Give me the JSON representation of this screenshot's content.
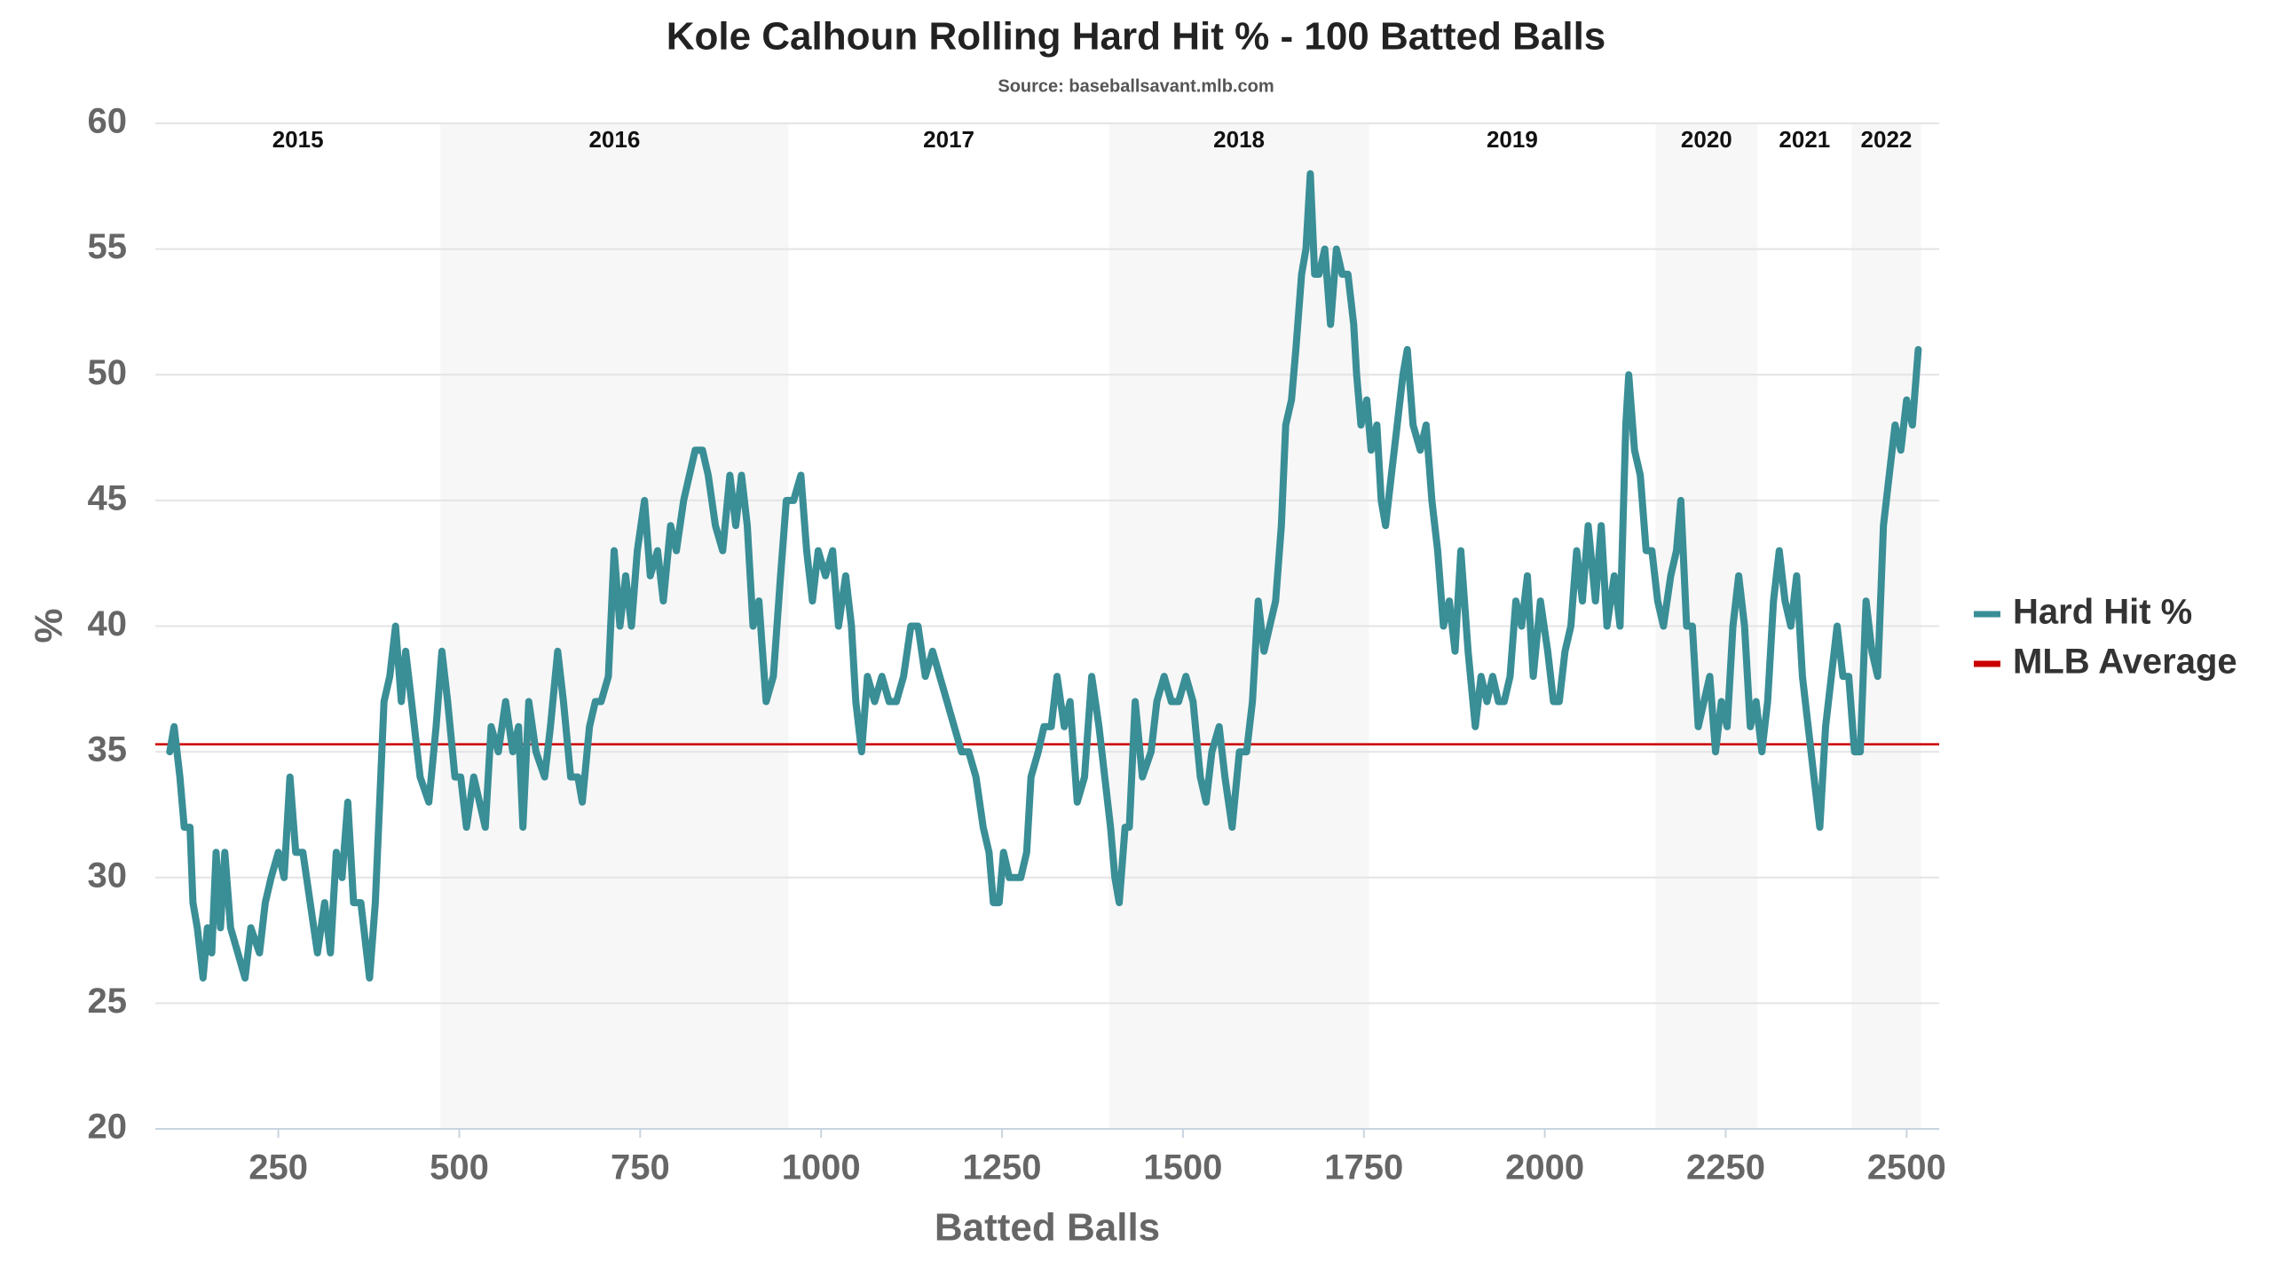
{
  "chart_data": {
    "type": "line",
    "title": "Kole Calhoun Rolling Hard Hit % - 100 Batted Balls",
    "subtitle": "Source: baseballsavant.mlb.com",
    "xlabel": "Batted Balls",
    "ylabel": "%",
    "xlim": [
      80,
      2545
    ],
    "ylim": [
      20,
      60
    ],
    "xticks": [
      250,
      500,
      750,
      1000,
      1250,
      1500,
      1750,
      2000,
      2250,
      2500
    ],
    "yticks": [
      20,
      25,
      30,
      35,
      40,
      45,
      50,
      55,
      60
    ],
    "grid": true,
    "legend": "right",
    "seasons": [
      {
        "label": "2015",
        "range": [
          80,
          474
        ],
        "shaded": false
      },
      {
        "label": "2016",
        "range": [
          474,
          955
        ],
        "shaded": true
      },
      {
        "label": "2017",
        "range": [
          955,
          1398
        ],
        "shaded": false
      },
      {
        "label": "2018",
        "range": [
          1398,
          1757
        ],
        "shaded": true
      },
      {
        "label": "2019",
        "range": [
          1757,
          2153
        ],
        "shaded": false
      },
      {
        "label": "2020",
        "range": [
          2153,
          2294
        ],
        "shaded": true
      },
      {
        "label": "2021",
        "range": [
          2294,
          2424
        ],
        "shaded": false
      },
      {
        "label": "2022",
        "range": [
          2424,
          2520
        ],
        "shaded": true
      }
    ],
    "reference_line": {
      "name": "MLB Average",
      "value": 35.3,
      "color": "#cc0000"
    },
    "x": [
      100,
      106,
      114,
      120,
      128,
      132,
      138,
      146,
      152,
      158,
      164,
      170,
      176,
      184,
      194,
      204,
      212,
      224,
      232,
      240,
      250,
      258,
      266,
      274,
      284,
      294,
      304,
      314,
      322,
      330,
      338,
      346,
      354,
      364,
      376,
      384,
      390,
      396,
      404,
      412,
      420,
      426,
      434,
      446,
      458,
      468,
      476,
      484,
      494,
      502,
      510,
      520,
      528,
      536,
      544,
      554,
      564,
      574,
      582,
      588,
      596,
      606,
      618,
      626,
      636,
      644,
      654,
      664,
      670,
      680,
      688,
      696,
      706,
      714,
      722,
      730,
      738,
      746,
      756,
      764,
      774,
      782,
      792,
      800,
      810,
      818,
      826,
      836,
      844,
      854,
      864,
      874,
      882,
      890,
      898,
      906,
      914,
      924,
      934,
      944,
      952,
      962,
      972,
      980,
      988,
      996,
      1006,
      1016,
      1024,
      1034,
      1042,
      1048,
      1056,
      1064,
      1074,
      1084,
      1094,
      1104,
      1114,
      1124,
      1134,
      1144,
      1154,
      1164,
      1174,
      1184,
      1194,
      1204,
      1214,
      1224,
      1232,
      1238,
      1246,
      1252,
      1260,
      1268,
      1276,
      1284,
      1290,
      1300,
      1308,
      1318,
      1326,
      1336,
      1344,
      1354,
      1364,
      1374,
      1384,
      1392,
      1400,
      1406,
      1412,
      1420,
      1426,
      1434,
      1444,
      1456,
      1464,
      1474,
      1484,
      1494,
      1504,
      1514,
      1524,
      1532,
      1540,
      1550,
      1558,
      1568,
      1578,
      1588,
      1596,
      1604,
      1612,
      1620,
      1628,
      1636,
      1642,
      1650,
      1656,
      1664,
      1670,
      1676,
      1682,
      1688,
      1696,
      1704,
      1712,
      1720,
      1728,
      1736,
      1740,
      1746,
      1754,
      1760,
      1768,
      1774,
      1780,
      1788,
      1796,
      1804,
      1810,
      1818,
      1828,
      1836,
      1844,
      1852,
      1860,
      1868,
      1876,
      1884,
      1894,
      1904,
      1912,
      1920,
      1928,
      1936,
      1944,
      1952,
      1960,
      1968,
      1976,
      1984,
      1994,
      2004,
      2012,
      2020,
      2028,
      2036,
      2044,
      2052,
      2060,
      2070,
      2078,
      2086,
      2096,
      2104,
      2112,
      2116,
      2124,
      2132,
      2140,
      2148,
      2156,
      2164,
      2174,
      2182,
      2188,
      2196,
      2204,
      2212,
      2220,
      2228,
      2236,
      2244,
      2252,
      2260,
      2268,
      2276,
      2284,
      2292,
      2300,
      2308,
      2316,
      2324,
      2332,
      2340,
      2348,
      2356,
      2364,
      2372,
      2380,
      2388,
      2396,
      2404,
      2412,
      2420,
      2428,
      2436,
      2444,
      2452,
      2460,
      2468,
      2476,
      2484,
      2492,
      2500,
      2508,
      2516
    ],
    "series": [
      {
        "name": "Hard Hit %",
        "color": "#3a8e96",
        "values": [
          35,
          36,
          34,
          32,
          32,
          29,
          28,
          26,
          28,
          27,
          31,
          28,
          31,
          28,
          27,
          26,
          28,
          27,
          29,
          30,
          31,
          30,
          34,
          31,
          31,
          29,
          27,
          29,
          27,
          31,
          30,
          33,
          29,
          29,
          26,
          29,
          33,
          37,
          38,
          40,
          37,
          39,
          37,
          34,
          33,
          36,
          39,
          37,
          34,
          34,
          32,
          34,
          33,
          32,
          36,
          35,
          37,
          35,
          36,
          32,
          37,
          35,
          34,
          36,
          39,
          37,
          34,
          34,
          33,
          36,
          37,
          37,
          38,
          43,
          40,
          42,
          40,
          43,
          45,
          42,
          43,
          41,
          44,
          43,
          45,
          46,
          47,
          47,
          46,
          44,
          43,
          46,
          44,
          46,
          44,
          40,
          41,
          37,
          38,
          42,
          45,
          45,
          46,
          43,
          41,
          43,
          42,
          43,
          40,
          42,
          40,
          37,
          35,
          38,
          37,
          38,
          37,
          37,
          38,
          40,
          40,
          38,
          39,
          38,
          37,
          36,
          35,
          35,
          34,
          32,
          31,
          29,
          29,
          31,
          30,
          30,
          30,
          31,
          34,
          35,
          36,
          36,
          38,
          36,
          37,
          33,
          34,
          38,
          36,
          34,
          32,
          30,
          29,
          32,
          32,
          37,
          34,
          35,
          37,
          38,
          37,
          37,
          38,
          37,
          34,
          33,
          35,
          36,
          34,
          32,
          35,
          35,
          37,
          41,
          39,
          40,
          41,
          44,
          48,
          49,
          51,
          54,
          55,
          58,
          54,
          54,
          55,
          52,
          55,
          54,
          54,
          52,
          50,
          48,
          49,
          47,
          48,
          45,
          44,
          46,
          48,
          50,
          51,
          48,
          47,
          48,
          45,
          43,
          40,
          41,
          39,
          43,
          39,
          36,
          38,
          37,
          38,
          37,
          37,
          38,
          41,
          40,
          42,
          38,
          41,
          39,
          37,
          37,
          39,
          40,
          43,
          41,
          44,
          41,
          44,
          40,
          42,
          40,
          48,
          50,
          47,
          46,
          43,
          43,
          41,
          40,
          42,
          43,
          45,
          40,
          40,
          36,
          37,
          38,
          35,
          37,
          36,
          40,
          42,
          40,
          36,
          37,
          35,
          37,
          41,
          43,
          41,
          40,
          42,
          38,
          36,
          34,
          32,
          36,
          38,
          40,
          38,
          38,
          35,
          35,
          41,
          39,
          38,
          44,
          46,
          48,
          47,
          49,
          48,
          51
        ]
      }
    ]
  }
}
